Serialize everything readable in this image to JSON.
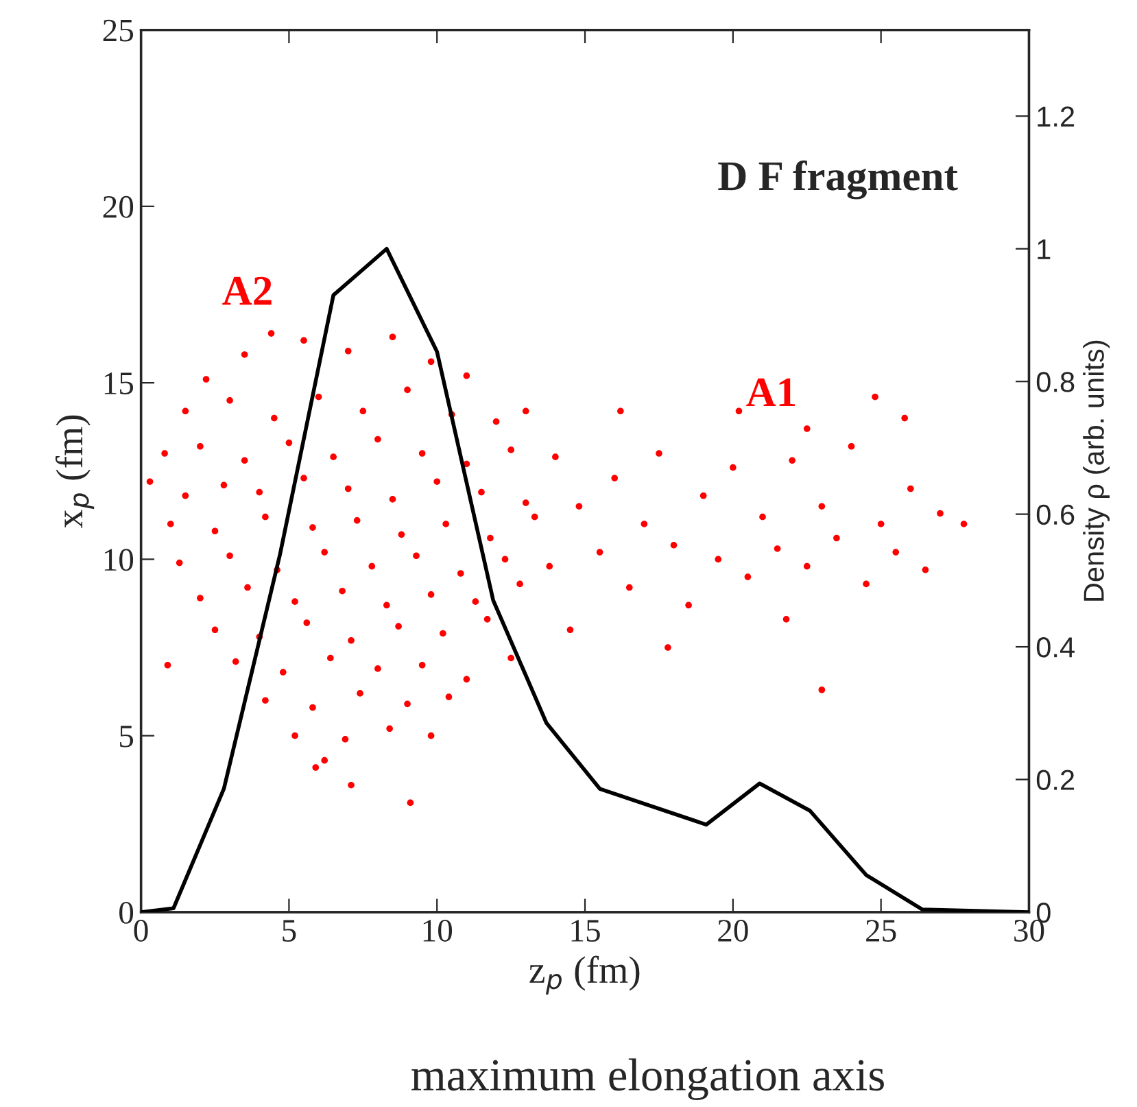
{
  "chart_data": {
    "type": "scatter",
    "xlabel": "z$_{p}$ (fm)",
    "ylabel": "x$_{p}$ (fm)",
    "y2label": "Density ρ (arb. units)",
    "xlim": [
      0,
      30
    ],
    "xticks": [
      0,
      5,
      10,
      15,
      20,
      25,
      30
    ],
    "ylim": [
      0,
      25
    ],
    "yticks": [
      0,
      5,
      10,
      15,
      20,
      25
    ],
    "y2lim": [
      0,
      1.33
    ],
    "y2ticks": [
      0,
      0.2,
      0.4,
      0.6,
      0.8,
      1,
      1.2
    ],
    "grid": false,
    "legend": false,
    "annotations": [
      "D F fragment",
      "maximum elongation axis",
      "A2",
      "A1"
    ],
    "series": [
      {
        "marker": "circle",
        "color": "#ff0000",
        "x": [
          3.5,
          5.5,
          7,
          8.5,
          9.8,
          11,
          2.2,
          4.4,
          1.5,
          3,
          4.5,
          6,
          7.5,
          9,
          10.5,
          12,
          13,
          0.8,
          2,
          3.5,
          5,
          6.5,
          8,
          9.5,
          11,
          12.5,
          14,
          0.3,
          1.5,
          2.8,
          4,
          5.5,
          7,
          8.5,
          10,
          11.5,
          13,
          1,
          2.5,
          4.2,
          5.8,
          7.3,
          8.8,
          10.3,
          11.8,
          13.3,
          1.3,
          3,
          4.6,
          6.2,
          7.8,
          9.3,
          10.8,
          12.3,
          13.8,
          2,
          3.6,
          5.2,
          6.8,
          8.3,
          9.8,
          11.3,
          12.8,
          2.5,
          4,
          5.6,
          7.1,
          8.7,
          10.2,
          11.7,
          14.5,
          0.9,
          3.2,
          4.8,
          6.4,
          8,
          9.5,
          11,
          12.5,
          4.2,
          5.8,
          7.4,
          9,
          10.4,
          5.2,
          6.9,
          8.4,
          9.8,
          6.2,
          7.1,
          9.1,
          5.9,
          14.8,
          15.5,
          16,
          16.5,
          17,
          17.5,
          18,
          18.5,
          19,
          19.5,
          20,
          20.5,
          21,
          21.5,
          22,
          22.5,
          23,
          23.5,
          24,
          24.5,
          25,
          25.5,
          26,
          26.5,
          27,
          27.8,
          24.8,
          25.8,
          20.2,
          17.8,
          23,
          22.5,
          16.2,
          21.8
        ],
        "values": [
          15.8,
          16.2,
          15.9,
          16.3,
          15.6,
          15.2,
          15.1,
          16.4,
          14.2,
          14.5,
          14,
          14.6,
          14.2,
          14.8,
          14.1,
          13.9,
          14.2,
          13,
          13.2,
          12.8,
          13.3,
          12.9,
          13.4,
          13,
          12.7,
          13.1,
          12.9,
          12.2,
          11.8,
          12.1,
          11.9,
          12.3,
          12,
          11.7,
          12.2,
          11.9,
          11.6,
          11,
          10.8,
          11.2,
          10.9,
          11.1,
          10.7,
          11,
          10.6,
          11.2,
          9.9,
          10.1,
          9.7,
          10.2,
          9.8,
          10.1,
          9.6,
          10,
          9.8,
          8.9,
          9.2,
          8.8,
          9.1,
          8.7,
          9,
          8.8,
          9.3,
          8,
          7.8,
          8.2,
          7.7,
          8.1,
          7.9,
          8.3,
          8,
          7,
          7.1,
          6.8,
          7.2,
          6.9,
          7,
          6.6,
          7.2,
          6,
          5.8,
          6.2,
          5.9,
          6.1,
          5,
          4.9,
          5.2,
          5,
          4.3,
          3.6,
          3.1,
          4.1,
          11.5,
          10.2,
          12.3,
          9.2,
          11,
          13,
          10.4,
          8.7,
          11.8,
          10,
          12.6,
          9.5,
          11.2,
          10.3,
          12.8,
          9.8,
          11.5,
          10.6,
          13.2,
          9.3,
          11,
          10.2,
          12,
          9.7,
          11.3,
          11,
          14.6,
          14,
          14.2,
          7.5,
          6.3,
          13.7,
          14.2,
          8.3
        ]
      },
      {
        "type": "line",
        "axis": "y2",
        "marker": "none",
        "line_style": "solid",
        "color": "#000000",
        "x": [
          0,
          1.1,
          2.8,
          4.7,
          6.5,
          8.3,
          10,
          11.9,
          13.7,
          15.5,
          19.1,
          20.9,
          22.6,
          24.5,
          26.4,
          30
        ],
        "values": [
          0,
          0.006,
          0.186,
          0.54,
          0.93,
          1,
          0.845,
          0.47,
          0.285,
          0.186,
          0.132,
          0.194,
          0.153,
          0.056,
          0.004,
          0
        ]
      }
    ]
  }
}
